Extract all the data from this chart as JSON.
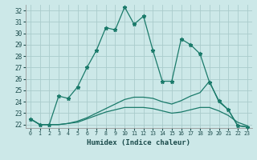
{
  "xlabel": "Humidex (Indice chaleur)",
  "background_color": "#cce8e8",
  "grid_color": "#aacccc",
  "line_color": "#1a7a6a",
  "xlim": [
    -0.5,
    23.5
  ],
  "ylim": [
    21.7,
    32.5
  ],
  "yticks": [
    22,
    23,
    24,
    25,
    26,
    27,
    28,
    29,
    30,
    31,
    32
  ],
  "xticks": [
    0,
    1,
    2,
    3,
    4,
    5,
    6,
    7,
    8,
    9,
    10,
    11,
    12,
    13,
    14,
    15,
    16,
    17,
    18,
    19,
    20,
    21,
    22,
    23
  ],
  "series1_x": [
    0,
    1,
    2,
    3,
    4,
    5,
    6,
    7,
    8,
    9,
    10,
    11,
    12,
    13,
    14,
    15,
    16,
    17,
    18,
    19,
    20,
    21,
    22,
    23
  ],
  "series1_y": [
    22.5,
    22.0,
    22.0,
    24.5,
    24.3,
    25.3,
    27.0,
    28.5,
    30.5,
    30.3,
    32.3,
    30.8,
    31.5,
    28.5,
    25.8,
    25.8,
    29.5,
    29.0,
    28.2,
    25.7,
    24.1,
    23.3,
    21.9,
    21.8
  ],
  "series2_x": [
    0,
    1,
    2,
    3,
    4,
    5,
    6,
    7,
    8,
    9,
    10,
    11,
    12,
    13,
    14,
    15,
    16,
    17,
    18,
    19,
    20,
    21,
    22,
    23
  ],
  "series2_y": [
    22.5,
    22.0,
    22.0,
    22.0,
    22.1,
    22.2,
    22.5,
    22.8,
    23.1,
    23.3,
    23.5,
    23.5,
    23.5,
    23.4,
    23.2,
    23.0,
    23.1,
    23.3,
    23.5,
    23.5,
    23.2,
    22.8,
    22.2,
    21.9
  ],
  "series3_x": [
    0,
    1,
    2,
    3,
    4,
    5,
    6,
    7,
    8,
    9,
    10,
    11,
    12,
    13,
    14,
    15,
    16,
    17,
    18,
    19,
    20,
    21,
    22,
    23
  ],
  "series3_y": [
    22.5,
    22.0,
    22.0,
    22.0,
    22.1,
    22.3,
    22.6,
    23.0,
    23.4,
    23.8,
    24.2,
    24.4,
    24.4,
    24.3,
    24.0,
    23.8,
    24.1,
    24.5,
    24.8,
    25.8,
    24.0,
    23.3,
    21.9,
    21.8
  ]
}
